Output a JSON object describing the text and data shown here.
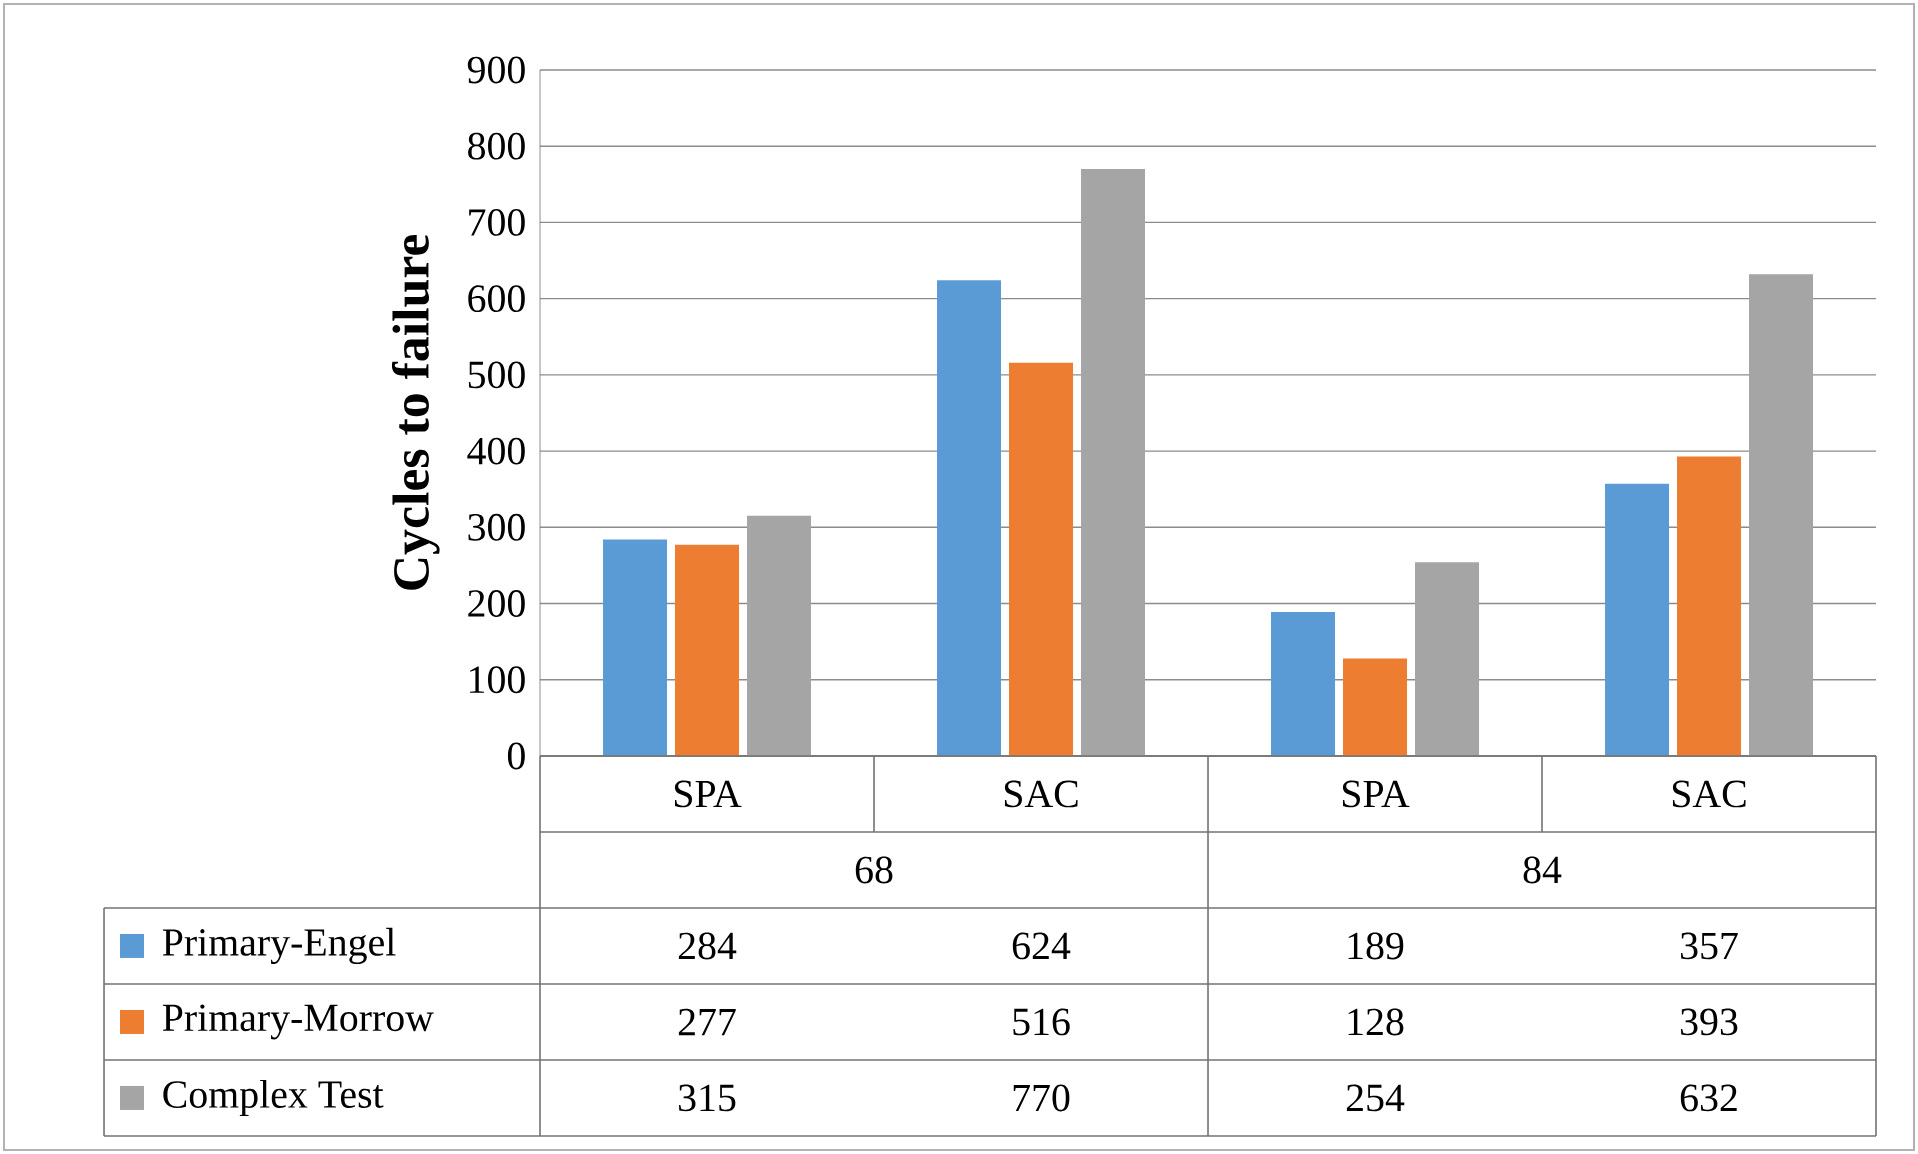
{
  "chart_data": {
    "type": "bar",
    "ylabel": "Cycles to failure",
    "categories": [
      "SPA",
      "SAC",
      "SPA",
      "SAC"
    ],
    "annotations": [
      "68",
      "84"
    ],
    "series": [
      {
        "name": "Primary-Engel",
        "color": "#5b9bd5",
        "values": [
          284,
          624,
          189,
          357
        ]
      },
      {
        "name": "Primary-Morrow",
        "color": "#ed7d31",
        "values": [
          277,
          516,
          128,
          393
        ]
      },
      {
        "name": "Complex Test",
        "color": "#a5a5a5",
        "values": [
          315,
          770,
          254,
          632
        ]
      }
    ],
    "ylim": [
      0,
      900
    ],
    "yticks": [
      0,
      100,
      200,
      300,
      400,
      500,
      600,
      700,
      800,
      900
    ],
    "grid": "y",
    "legend": "bottom",
    "data_labels": true
  }
}
